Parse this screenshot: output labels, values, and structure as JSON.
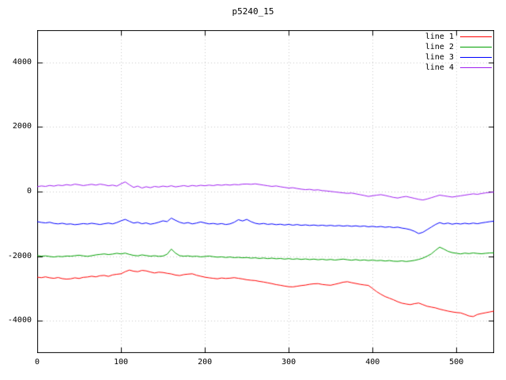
{
  "chart_data": {
    "type": "line",
    "title": "p5240_15",
    "xlabel": "",
    "ylabel": "",
    "xlim": [
      0,
      545
    ],
    "ylim": [
      -5000,
      5000
    ],
    "x_ticks": [
      0,
      100,
      200,
      300,
      400,
      500
    ],
    "y_ticks": [
      -4000,
      -2000,
      0,
      2000,
      4000
    ],
    "grid": true,
    "grid_style": "dotted",
    "legend_position": "top-right",
    "x_start": 0,
    "x_step": 5,
    "axis_color": "#000000",
    "grid_color": "#c8c8c8",
    "series": [
      {
        "name": "line 1",
        "color": "#ff0000",
        "values": [
          -2650,
          -2665,
          -2640,
          -2670,
          -2685,
          -2660,
          -2695,
          -2710,
          -2700,
          -2670,
          -2690,
          -2655,
          -2645,
          -2620,
          -2640,
          -2605,
          -2595,
          -2625,
          -2580,
          -2560,
          -2545,
          -2480,
          -2430,
          -2465,
          -2480,
          -2440,
          -2455,
          -2490,
          -2520,
          -2495,
          -2505,
          -2530,
          -2550,
          -2585,
          -2600,
          -2570,
          -2555,
          -2545,
          -2590,
          -2620,
          -2650,
          -2670,
          -2685,
          -2700,
          -2675,
          -2690,
          -2680,
          -2665,
          -2685,
          -2705,
          -2730,
          -2745,
          -2755,
          -2780,
          -2800,
          -2825,
          -2850,
          -2880,
          -2900,
          -2925,
          -2945,
          -2950,
          -2930,
          -2910,
          -2895,
          -2870,
          -2855,
          -2850,
          -2875,
          -2890,
          -2900,
          -2870,
          -2840,
          -2805,
          -2790,
          -2820,
          -2845,
          -2870,
          -2890,
          -2905,
          -3000,
          -3100,
          -3180,
          -3250,
          -3300,
          -3350,
          -3410,
          -3455,
          -3480,
          -3500,
          -3470,
          -3450,
          -3500,
          -3550,
          -3575,
          -3600,
          -3640,
          -3670,
          -3700,
          -3725,
          -3745,
          -3755,
          -3800,
          -3850,
          -3870,
          -3805,
          -3775,
          -3750,
          -3725,
          -3700
        ]
      },
      {
        "name": "line 2",
        "color": "#00a000",
        "values": [
          -1980,
          -2000,
          -1990,
          -2010,
          -2025,
          -2005,
          -2015,
          -1995,
          -2000,
          -1985,
          -1970,
          -1990,
          -2005,
          -1985,
          -1960,
          -1945,
          -1930,
          -1950,
          -1935,
          -1910,
          -1930,
          -1905,
          -1945,
          -1975,
          -1990,
          -1960,
          -1980,
          -2000,
          -1985,
          -2005,
          -1995,
          -1940,
          -1780,
          -1905,
          -1985,
          -2000,
          -1990,
          -2010,
          -2000,
          -2020,
          -2010,
          -1995,
          -2015,
          -2030,
          -2020,
          -2040,
          -2025,
          -2045,
          -2035,
          -2050,
          -2040,
          -2060,
          -2050,
          -2070,
          -2055,
          -2075,
          -2060,
          -2080,
          -2070,
          -2090,
          -2075,
          -2095,
          -2080,
          -2100,
          -2085,
          -2105,
          -2090,
          -2110,
          -2095,
          -2115,
          -2100,
          -2120,
          -2105,
          -2090,
          -2110,
          -2125,
          -2105,
          -2130,
          -2115,
          -2135,
          -2120,
          -2140,
          -2130,
          -2150,
          -2135,
          -2155,
          -2160,
          -2145,
          -2165,
          -2150,
          -2130,
          -2100,
          -2060,
          -2000,
          -1930,
          -1820,
          -1720,
          -1780,
          -1850,
          -1890,
          -1910,
          -1930,
          -1905,
          -1920,
          -1900,
          -1915,
          -1925,
          -1910,
          -1900,
          -1895
        ]
      },
      {
        "name": "line 3",
        "color": "#0000ff",
        "values": [
          -930,
          -955,
          -970,
          -950,
          -985,
          -1000,
          -980,
          -1010,
          -1000,
          -1025,
          -1010,
          -990,
          -1005,
          -980,
          -1000,
          -1020,
          -995,
          -975,
          -1000,
          -960,
          -905,
          -860,
          -920,
          -975,
          -950,
          -995,
          -970,
          -1010,
          -985,
          -950,
          -905,
          -930,
          -820,
          -890,
          -950,
          -985,
          -960,
          -1000,
          -975,
          -940,
          -970,
          -1000,
          -985,
          -1010,
          -990,
          -1020,
          -1000,
          -950,
          -870,
          -910,
          -860,
          -930,
          -980,
          -1005,
          -985,
          -1015,
          -1000,
          -1025,
          -1010,
          -1035,
          -1015,
          -1040,
          -1020,
          -1045,
          -1030,
          -1050,
          -1035,
          -1055,
          -1040,
          -1060,
          -1045,
          -1065,
          -1050,
          -1070,
          -1055,
          -1075,
          -1060,
          -1080,
          -1065,
          -1090,
          -1075,
          -1095,
          -1080,
          -1105,
          -1090,
          -1115,
          -1100,
          -1130,
          -1150,
          -1180,
          -1230,
          -1300,
          -1260,
          -1180,
          -1100,
          -1020,
          -960,
          -1000,
          -975,
          -1010,
          -985,
          -1005,
          -980,
          -1000,
          -975,
          -995,
          -970,
          -950,
          -930,
          -915
        ]
      },
      {
        "name": "line 4",
        "color": "#a020f0",
        "values": [
          150,
          175,
          160,
          190,
          170,
          200,
          185,
          215,
          195,
          230,
          210,
          185,
          205,
          225,
          200,
          230,
          210,
          180,
          200,
          170,
          240,
          300,
          210,
          130,
          170,
          110,
          150,
          120,
          160,
          140,
          170,
          150,
          180,
          145,
          165,
          185,
          160,
          190,
          170,
          195,
          180,
          200,
          185,
          210,
          195,
          215,
          200,
          220,
          210,
          230,
          235,
          225,
          240,
          220,
          200,
          180,
          160,
          175,
          150,
          130,
          110,
          120,
          95,
          75,
          60,
          70,
          45,
          55,
          30,
          20,
          5,
          -10,
          -25,
          -40,
          -55,
          -45,
          -70,
          -95,
          -120,
          -150,
          -130,
          -110,
          -95,
          -120,
          -150,
          -180,
          -200,
          -170,
          -150,
          -180,
          -210,
          -240,
          -260,
          -230,
          -190,
          -150,
          -110,
          -130,
          -150,
          -170,
          -150,
          -130,
          -110,
          -90,
          -70,
          -85,
          -60,
          -40,
          -25,
          -15
        ]
      }
    ]
  }
}
